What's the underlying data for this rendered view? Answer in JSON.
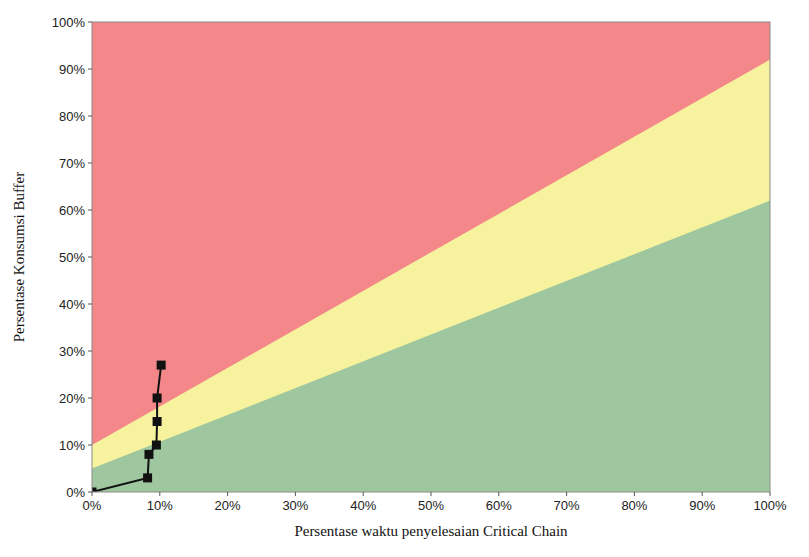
{
  "chart_data": {
    "type": "line",
    "xlabel": "Persentase waktu penyelesaian Critical Chain",
    "ylabel": "Persentase Konsumsi Buffer",
    "xlim": [
      0,
      100
    ],
    "ylim": [
      0,
      100
    ],
    "xticks": [
      {
        "value": 0,
        "label": "0%"
      },
      {
        "value": 10,
        "label": "10%"
      },
      {
        "value": 20,
        "label": "20%"
      },
      {
        "value": 30,
        "label": "30%"
      },
      {
        "value": 40,
        "label": "40%"
      },
      {
        "value": 50,
        "label": "50%"
      },
      {
        "value": 60,
        "label": "60%"
      },
      {
        "value": 70,
        "label": "70%"
      },
      {
        "value": 80,
        "label": "80%"
      },
      {
        "value": 90,
        "label": "90%"
      },
      {
        "value": 100,
        "label": "100%"
      }
    ],
    "yticks": [
      {
        "value": 0,
        "label": "0%"
      },
      {
        "value": 10,
        "label": "10%"
      },
      {
        "value": 20,
        "label": "20%"
      },
      {
        "value": 30,
        "label": "30%"
      },
      {
        "value": 40,
        "label": "40%"
      },
      {
        "value": 50,
        "label": "50%"
      },
      {
        "value": 60,
        "label": "60%"
      },
      {
        "value": 70,
        "label": "70%"
      },
      {
        "value": 80,
        "label": "80%"
      },
      {
        "value": 90,
        "label": "90%"
      },
      {
        "value": 100,
        "label": "100%"
      }
    ],
    "grid": false,
    "zones": [
      {
        "color": "#f3878a",
        "x": [
          0,
          100
        ],
        "values": [
          100,
          100
        ]
      },
      {
        "color": "#f6f29e",
        "x": [
          0,
          100
        ],
        "values": [
          10,
          92
        ]
      },
      {
        "color": "#9fc79f",
        "x": [
          0,
          100
        ],
        "values": [
          5,
          62
        ]
      }
    ],
    "series": [
      {
        "color": "#111111",
        "marker": "square",
        "line_style": "solid",
        "x": [
          0,
          8.2,
          8.4,
          9.5,
          9.6,
          9.6,
          10.2
        ],
        "values": [
          0,
          3,
          8,
          10,
          15,
          20,
          27
        ]
      }
    ]
  }
}
